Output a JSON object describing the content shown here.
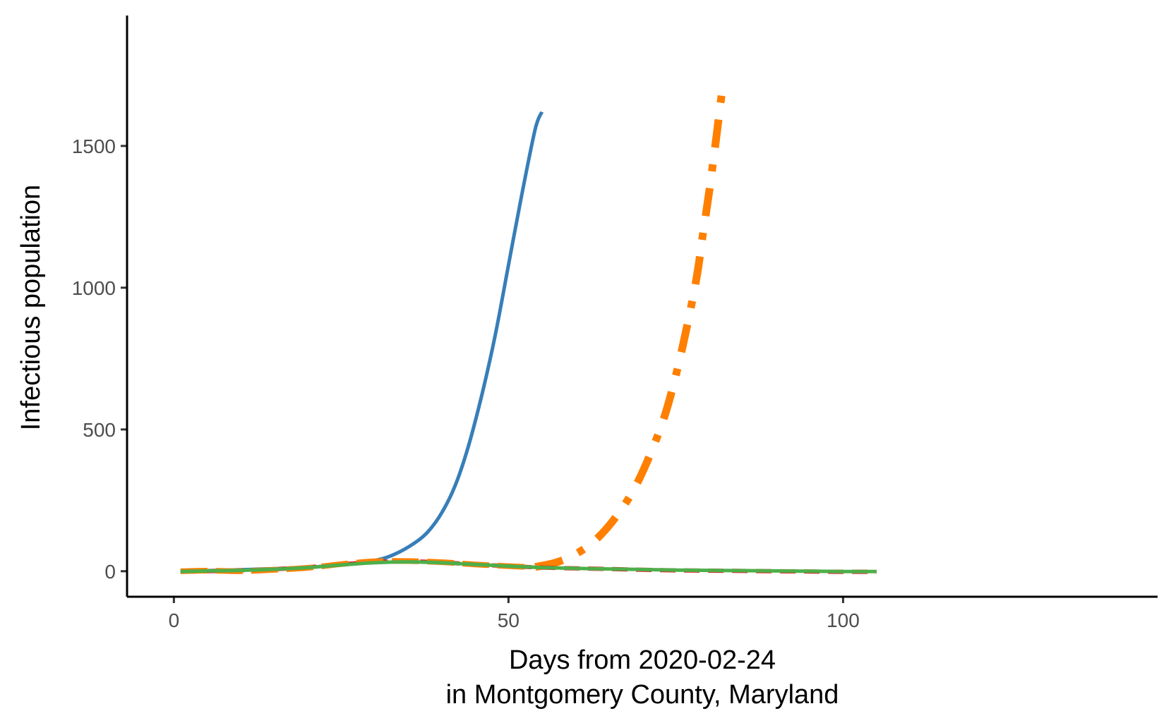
{
  "chart_data": {
    "type": "line",
    "title": "",
    "xlabel": "Days from 2020-02-24",
    "xlabel_line2": "in Montgomery County, Maryland",
    "ylabel": "Infectious population",
    "xlim": [
      -7,
      147
    ],
    "ylim": [
      -90,
      1960
    ],
    "x_ticks": [
      0,
      50,
      100
    ],
    "y_ticks": [
      0,
      500,
      1000,
      1500
    ],
    "grid": false,
    "legend": "none",
    "series": [
      {
        "color": "#377eb8",
        "style": "solid",
        "x": [
          1,
          5,
          10,
          15,
          20,
          25,
          30,
          33,
          36,
          38,
          40,
          42,
          44,
          46,
          48,
          50,
          52,
          54,
          55
        ],
        "y": [
          0,
          2,
          5,
          9,
          14,
          22,
          38,
          60,
          100,
          140,
          205,
          300,
          440,
          620,
          830,
          1080,
          1330,
          1560,
          1620
        ]
      },
      {
        "color": "#ff7f00",
        "style": "dotdash",
        "x": [
          54,
          57,
          60,
          63,
          66,
          69,
          72,
          74,
          76,
          78,
          79,
          80,
          81,
          82
        ],
        "y": [
          15,
          30,
          60,
          110,
          190,
          300,
          460,
          600,
          790,
          1020,
          1180,
          1340,
          1520,
          1710
        ]
      },
      {
        "color": "#e41a1c",
        "style": "dashed",
        "x": [
          1,
          5,
          10,
          15,
          20,
          25,
          30,
          35,
          40,
          45,
          50,
          55,
          60,
          65,
          70,
          75,
          80,
          85,
          90,
          95,
          100,
          105
        ],
        "y": [
          -2,
          0,
          3,
          7,
          14,
          24,
          32,
          35,
          31,
          24,
          18,
          13,
          10,
          8,
          5,
          3,
          2,
          1,
          0,
          -1,
          -2,
          -2
        ]
      },
      {
        "color": "#ff7f00",
        "style": "longdash",
        "x": [
          1,
          5,
          10,
          15,
          20,
          25,
          30,
          35,
          40,
          45,
          50,
          53
        ],
        "y": [
          0,
          2,
          0,
          5,
          12,
          25,
          35,
          36,
          32,
          24,
          18,
          15
        ]
      },
      {
        "color": "#4daf4a",
        "style": "solid",
        "x": [
          1,
          5,
          10,
          15,
          20,
          25,
          30,
          35,
          40,
          45,
          50,
          55,
          60,
          65,
          70,
          75,
          80,
          85,
          90,
          95,
          100,
          105
        ],
        "y": [
          -1,
          1,
          3,
          7,
          13,
          22,
          30,
          33,
          30,
          24,
          18,
          13,
          10,
          8,
          6,
          4,
          3,
          2,
          1,
          0,
          -1,
          -1
        ]
      }
    ]
  }
}
